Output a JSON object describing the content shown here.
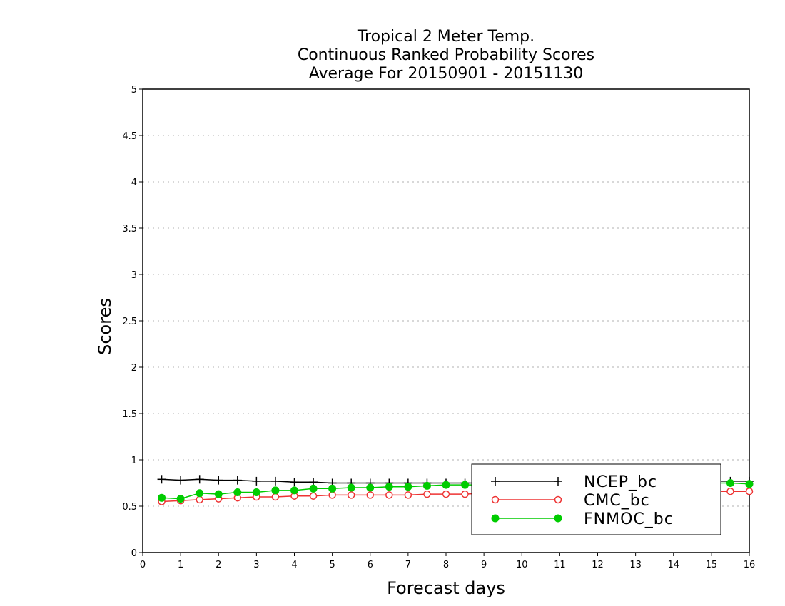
{
  "chart_data": {
    "type": "line",
    "title": [
      "Tropical 2 Meter Temp.",
      "Continuous Ranked Probability Scores",
      "Average For 20150901 - 20151130"
    ],
    "xlabel": "Forecast days",
    "ylabel": "Scores",
    "xlim": [
      0,
      16
    ],
    "ylim": [
      0,
      5
    ],
    "xticks": [
      "0",
      "1",
      "2",
      "3",
      "4",
      "5",
      "6",
      "7",
      "8",
      "9",
      "10",
      "11",
      "12",
      "13",
      "14",
      "15",
      "16"
    ],
    "yticks": [
      "0",
      "0.5",
      "1",
      "1.5",
      "2",
      "2.5",
      "3",
      "3.5",
      "4",
      "4.5",
      "5"
    ],
    "grid": "horizontal dotted",
    "legend_position": "bottom-right",
    "x": [
      0.5,
      1,
      1.5,
      2,
      2.5,
      3,
      3.5,
      4,
      4.5,
      5,
      5.5,
      6,
      6.5,
      7,
      7.5,
      8,
      8.5,
      9,
      9.5,
      10,
      10.5,
      11,
      11.5,
      12,
      12.5,
      13,
      13.5,
      14,
      14.5,
      15,
      15.5,
      16
    ],
    "series": [
      {
        "name": "NCEP_bc",
        "color": "#000000",
        "marker": "plus",
        "values": [
          0.79,
          0.78,
          0.79,
          0.78,
          0.78,
          0.77,
          0.77,
          0.76,
          0.76,
          0.75,
          0.75,
          0.75,
          0.75,
          0.75,
          0.75,
          0.75,
          0.75,
          0.75,
          0.75,
          0.75,
          0.75,
          0.75,
          0.76,
          0.76,
          0.76,
          0.76,
          0.76,
          0.77,
          0.77,
          0.77,
          0.77,
          0.77
        ]
      },
      {
        "name": "CMC_bc",
        "color": "#ee3333",
        "marker": "open-circle",
        "values": [
          0.55,
          0.56,
          0.57,
          0.58,
          0.59,
          0.6,
          0.6,
          0.61,
          0.61,
          0.62,
          0.62,
          0.62,
          0.62,
          0.62,
          0.63,
          0.63,
          0.63,
          0.64,
          0.64,
          0.64,
          0.64,
          0.65,
          0.65,
          0.65,
          0.65,
          0.65,
          0.66,
          0.66,
          0.66,
          0.66,
          0.66,
          0.66
        ]
      },
      {
        "name": "FNMOC_bc",
        "color": "#00cc00",
        "marker": "filled-circle",
        "values": [
          0.59,
          0.58,
          0.64,
          0.63,
          0.65,
          0.65,
          0.67,
          0.67,
          0.69,
          0.69,
          0.7,
          0.7,
          0.71,
          0.71,
          0.72,
          0.73,
          0.73,
          0.73,
          0.73,
          0.74,
          0.74,
          0.74,
          0.74,
          0.74,
          0.74,
          0.75,
          0.75,
          0.75,
          0.75,
          0.75,
          0.75,
          0.74
        ]
      }
    ]
  }
}
